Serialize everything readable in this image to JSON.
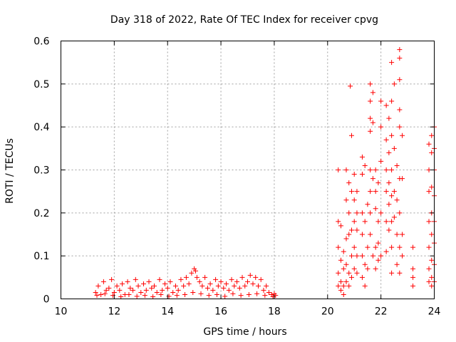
{
  "chart_data": {
    "type": "scatter",
    "title": "Day 318 of 2022, Rate Of TEC Index for receiver cpvg",
    "xlabel": "GPS time / hours",
    "ylabel": "ROTI / TECUs",
    "xlim": [
      10,
      24
    ],
    "ylim": [
      0,
      0.6
    ],
    "xticks": [
      "10",
      "12",
      "14",
      "16",
      "18",
      "20",
      "22",
      "24"
    ],
    "yticks": [
      "0",
      "0.1",
      "0.2",
      "0.3",
      "0.4",
      "0.5",
      "0.6"
    ],
    "grid": true,
    "marker": "plus",
    "color": "#ff0000",
    "points": [
      [
        11.3,
        0.015
      ],
      [
        11.4,
        0.03
      ],
      [
        11.5,
        0.01
      ],
      [
        11.6,
        0.04
      ],
      [
        11.7,
        0.02
      ],
      [
        11.8,
        0.025
      ],
      [
        11.9,
        0.045
      ],
      [
        12.0,
        0.015
      ],
      [
        12.1,
        0.03
      ],
      [
        12.2,
        0.02
      ],
      [
        12.3,
        0.035
      ],
      [
        12.4,
        0.01
      ],
      [
        12.5,
        0.04
      ],
      [
        12.6,
        0.025
      ],
      [
        12.7,
        0.02
      ],
      [
        12.8,
        0.045
      ],
      [
        12.9,
        0.03
      ],
      [
        13.0,
        0.015
      ],
      [
        13.1,
        0.035
      ],
      [
        13.2,
        0.02
      ],
      [
        13.3,
        0.04
      ],
      [
        13.4,
        0.025
      ],
      [
        13.5,
        0.03
      ],
      [
        13.6,
        0.015
      ],
      [
        13.7,
        0.045
      ],
      [
        13.8,
        0.02
      ],
      [
        13.9,
        0.035
      ],
      [
        14.0,
        0.025
      ],
      [
        14.1,
        0.04
      ],
      [
        14.2,
        0.015
      ],
      [
        14.3,
        0.03
      ],
      [
        14.4,
        0.02
      ],
      [
        14.5,
        0.045
      ],
      [
        14.6,
        0.03
      ],
      [
        14.7,
        0.05
      ],
      [
        14.8,
        0.035
      ],
      [
        14.9,
        0.06
      ],
      [
        15.0,
        0.07
      ],
      [
        15.05,
        0.065
      ],
      [
        15.1,
        0.05
      ],
      [
        15.2,
        0.04
      ],
      [
        15.3,
        0.03
      ],
      [
        15.4,
        0.05
      ],
      [
        15.5,
        0.025
      ],
      [
        15.6,
        0.035
      ],
      [
        15.7,
        0.02
      ],
      [
        15.8,
        0.045
      ],
      [
        15.9,
        0.03
      ],
      [
        16.0,
        0.04
      ],
      [
        16.1,
        0.025
      ],
      [
        16.2,
        0.035
      ],
      [
        16.3,
        0.02
      ],
      [
        16.4,
        0.045
      ],
      [
        16.5,
        0.03
      ],
      [
        16.6,
        0.04
      ],
      [
        16.7,
        0.025
      ],
      [
        16.8,
        0.05
      ],
      [
        16.9,
        0.03
      ],
      [
        17.0,
        0.04
      ],
      [
        17.1,
        0.055
      ],
      [
        17.2,
        0.035
      ],
      [
        17.3,
        0.05
      ],
      [
        17.4,
        0.03
      ],
      [
        17.5,
        0.045
      ],
      [
        17.6,
        0.02
      ],
      [
        17.7,
        0.03
      ],
      [
        17.8,
        0.015
      ],
      [
        17.9,
        0.01
      ],
      [
        18.0,
        0.012
      ],
      [
        18.05,
        0.008
      ],
      [
        11.35,
        0.008
      ],
      [
        11.65,
        0.012
      ],
      [
        11.95,
        0.008
      ],
      [
        12.25,
        0.005
      ],
      [
        12.55,
        0.01
      ],
      [
        12.85,
        0.006
      ],
      [
        13.15,
        0.008
      ],
      [
        13.45,
        0.005
      ],
      [
        13.75,
        0.01
      ],
      [
        14.05,
        0.006
      ],
      [
        14.35,
        0.008
      ],
      [
        14.65,
        0.01
      ],
      [
        14.95,
        0.015
      ],
      [
        15.25,
        0.012
      ],
      [
        15.55,
        0.008
      ],
      [
        15.85,
        0.01
      ],
      [
        16.15,
        0.006
      ],
      [
        16.45,
        0.012
      ],
      [
        16.75,
        0.008
      ],
      [
        17.05,
        0.01
      ],
      [
        17.35,
        0.012
      ],
      [
        17.65,
        0.008
      ],
      [
        17.95,
        0.005
      ],
      [
        20.4,
        0.3
      ],
      [
        20.4,
        0.18
      ],
      [
        20.4,
        0.12
      ],
      [
        20.4,
        0.06
      ],
      [
        20.4,
        0.03
      ],
      [
        20.5,
        0.17
      ],
      [
        20.5,
        0.09
      ],
      [
        20.5,
        0.04
      ],
      [
        20.5,
        0.02
      ],
      [
        20.6,
        0.11
      ],
      [
        20.6,
        0.07
      ],
      [
        20.6,
        0.03
      ],
      [
        20.6,
        0.01
      ],
      [
        20.7,
        0.3
      ],
      [
        20.7,
        0.23
      ],
      [
        20.7,
        0.14
      ],
      [
        20.7,
        0.08
      ],
      [
        20.7,
        0.04
      ],
      [
        20.8,
        0.27
      ],
      [
        20.8,
        0.2
      ],
      [
        20.8,
        0.15
      ],
      [
        20.8,
        0.06
      ],
      [
        20.8,
        0.03
      ],
      [
        20.85,
        0.495
      ],
      [
        20.9,
        0.38
      ],
      [
        20.9,
        0.25
      ],
      [
        20.9,
        0.16
      ],
      [
        20.9,
        0.1
      ],
      [
        20.9,
        0.05
      ],
      [
        21.0,
        0.29
      ],
      [
        21.0,
        0.23
      ],
      [
        21.0,
        0.18
      ],
      [
        21.0,
        0.12
      ],
      [
        21.0,
        0.07
      ],
      [
        21.1,
        0.25
      ],
      [
        21.1,
        0.2
      ],
      [
        21.1,
        0.16
      ],
      [
        21.1,
        0.1
      ],
      [
        21.1,
        0.06
      ],
      [
        21.3,
        0.33
      ],
      [
        21.3,
        0.29
      ],
      [
        21.3,
        0.2
      ],
      [
        21.3,
        0.15
      ],
      [
        21.3,
        0.1
      ],
      [
        21.3,
        0.05
      ],
      [
        21.4,
        0.31
      ],
      [
        21.4,
        0.18
      ],
      [
        21.4,
        0.08
      ],
      [
        21.4,
        0.03
      ],
      [
        21.5,
        0.22
      ],
      [
        21.5,
        0.12
      ],
      [
        21.5,
        0.07
      ],
      [
        21.6,
        0.5
      ],
      [
        21.6,
        0.46
      ],
      [
        21.6,
        0.42
      ],
      [
        21.6,
        0.39
      ],
      [
        21.6,
        0.3
      ],
      [
        21.6,
        0.25
      ],
      [
        21.6,
        0.2
      ],
      [
        21.6,
        0.15
      ],
      [
        21.7,
        0.48
      ],
      [
        21.7,
        0.41
      ],
      [
        21.7,
        0.28
      ],
      [
        21.7,
        0.1
      ],
      [
        21.8,
        0.3
      ],
      [
        21.8,
        0.25
      ],
      [
        21.8,
        0.21
      ],
      [
        21.8,
        0.12
      ],
      [
        21.8,
        0.07
      ],
      [
        21.9,
        0.27
      ],
      [
        21.9,
        0.18
      ],
      [
        21.9,
        0.13
      ],
      [
        21.9,
        0.09
      ],
      [
        22.0,
        0.46
      ],
      [
        22.0,
        0.4
      ],
      [
        22.0,
        0.32
      ],
      [
        22.0,
        0.2
      ],
      [
        22.0,
        0.1
      ],
      [
        22.2,
        0.45
      ],
      [
        22.2,
        0.37
      ],
      [
        22.2,
        0.3
      ],
      [
        22.2,
        0.25
      ],
      [
        22.2,
        0.18
      ],
      [
        22.2,
        0.11
      ],
      [
        22.3,
        0.42
      ],
      [
        22.3,
        0.34
      ],
      [
        22.3,
        0.27
      ],
      [
        22.3,
        0.22
      ],
      [
        22.3,
        0.16
      ],
      [
        22.4,
        0.55
      ],
      [
        22.4,
        0.46
      ],
      [
        22.4,
        0.38
      ],
      [
        22.4,
        0.3
      ],
      [
        22.4,
        0.24
      ],
      [
        22.4,
        0.18
      ],
      [
        22.4,
        0.12
      ],
      [
        22.4,
        0.06
      ],
      [
        22.5,
        0.5
      ],
      [
        22.5,
        0.35
      ],
      [
        22.5,
        0.25
      ],
      [
        22.5,
        0.19
      ],
      [
        22.6,
        0.31
      ],
      [
        22.6,
        0.23
      ],
      [
        22.6,
        0.15
      ],
      [
        22.6,
        0.08
      ],
      [
        22.7,
        0.58
      ],
      [
        22.7,
        0.56
      ],
      [
        22.7,
        0.51
      ],
      [
        22.7,
        0.44
      ],
      [
        22.7,
        0.4
      ],
      [
        22.7,
        0.28
      ],
      [
        22.7,
        0.2
      ],
      [
        22.7,
        0.12
      ],
      [
        22.7,
        0.06
      ],
      [
        22.8,
        0.38
      ],
      [
        22.8,
        0.28
      ],
      [
        22.8,
        0.15
      ],
      [
        22.8,
        0.1
      ],
      [
        23.2,
        0.07
      ],
      [
        23.2,
        0.05
      ],
      [
        23.2,
        0.03
      ],
      [
        23.2,
        0.12
      ],
      [
        23.8,
        0.36
      ],
      [
        23.8,
        0.3
      ],
      [
        23.8,
        0.25
      ],
      [
        23.8,
        0.18
      ],
      [
        23.8,
        0.12
      ],
      [
        23.8,
        0.07
      ],
      [
        23.8,
        0.04
      ],
      [
        23.9,
        0.38
      ],
      [
        23.9,
        0.34
      ],
      [
        23.9,
        0.26
      ],
      [
        23.9,
        0.2
      ],
      [
        23.9,
        0.15
      ],
      [
        23.9,
        0.09
      ],
      [
        23.9,
        0.05
      ],
      [
        23.9,
        0.03
      ],
      [
        24.0,
        0.4
      ],
      [
        24.0,
        0.35
      ],
      [
        24.0,
        0.3
      ],
      [
        24.0,
        0.24
      ],
      [
        24.0,
        0.18
      ],
      [
        24.0,
        0.13
      ],
      [
        24.0,
        0.08
      ],
      [
        24.0,
        0.04
      ]
    ]
  }
}
